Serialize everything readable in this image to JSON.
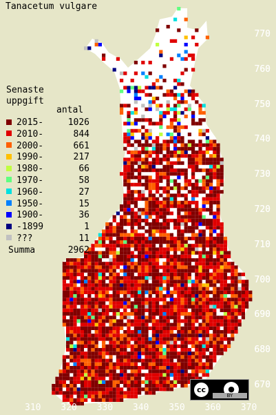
{
  "title": "Tanacetum vulgare",
  "legend": {
    "heading_line1": "Senaste",
    "heading_line2": "uppgift",
    "count_header": "antal",
    "items": [
      {
        "label": "2015-",
        "count": "1026",
        "color": "#800000"
      },
      {
        "label": "2010-",
        "count": "844",
        "color": "#e00000"
      },
      {
        "label": "2000-",
        "count": "661",
        "color": "#ff6000"
      },
      {
        "label": "1990-",
        "count": "217",
        "color": "#ffc000"
      },
      {
        "label": "1980-",
        "count": "66",
        "color": "#c0ff40"
      },
      {
        "label": "1970-",
        "count": "58",
        "color": "#60ff80"
      },
      {
        "label": "1960-",
        "count": "27",
        "color": "#00e0e0"
      },
      {
        "label": "1950-",
        "count": "15",
        "color": "#0080ff"
      },
      {
        "label": "1900-",
        "count": "36",
        "color": "#0000ff"
      },
      {
        "label": "-1899",
        "count": "1",
        "color": "#000080"
      },
      {
        "label": "???",
        "count": "11",
        "color": "#c0c0c0"
      }
    ],
    "total_label": "Summa",
    "total_count": "2962"
  },
  "axes": {
    "y_ticks": [
      "770",
      "760",
      "750",
      "740",
      "730",
      "720",
      "710",
      "700",
      "690",
      "680",
      "670"
    ],
    "x_ticks": [
      "310",
      "320",
      "330",
      "340",
      "350",
      "360",
      "370"
    ]
  },
  "license": {
    "cc": "cc",
    "by": "BY",
    "person_icon": "person-icon"
  }
}
